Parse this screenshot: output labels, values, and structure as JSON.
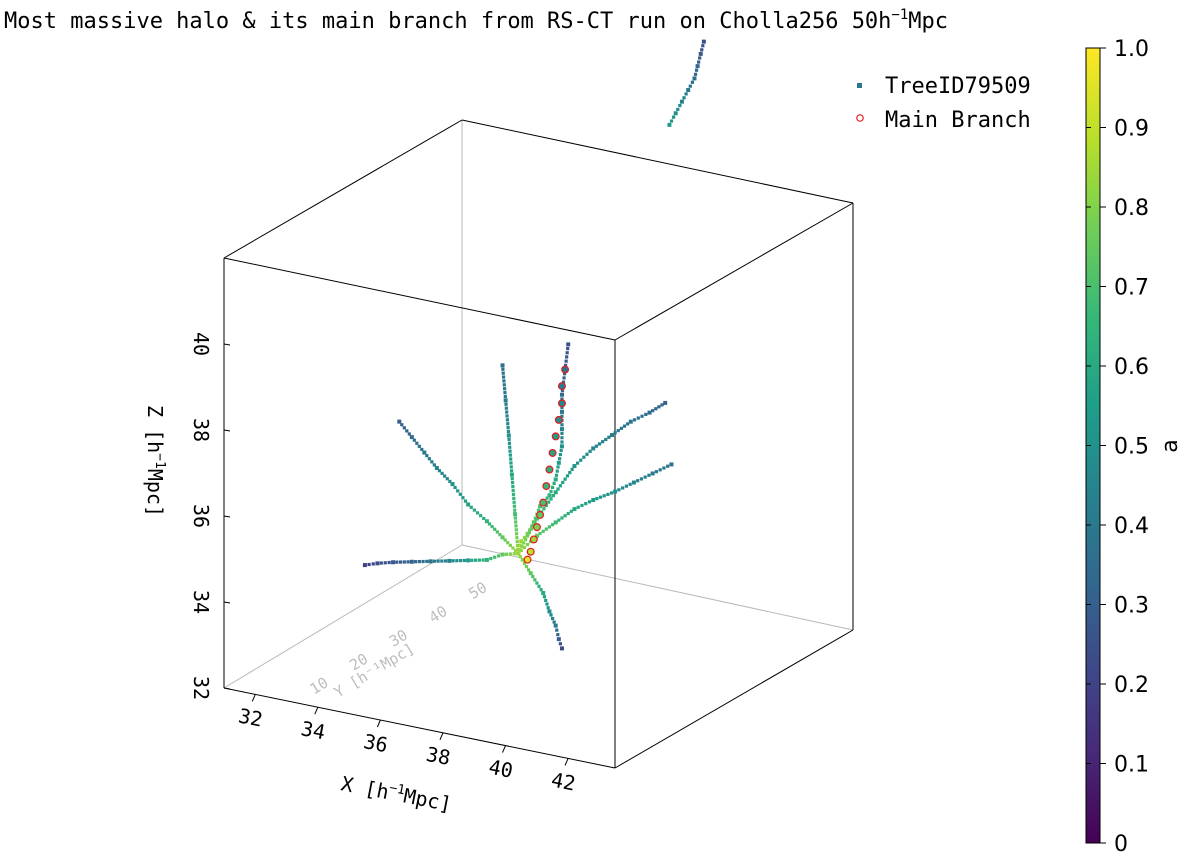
{
  "figure": {
    "title_main": "Most massive halo & its main branch from RS-CT run on Cholla256 50h",
    "title_sup": "−1",
    "title_tail": "Mpc"
  },
  "legend": {
    "entries": [
      {
        "label": "TreeID79509",
        "marker": "square",
        "color": "#2a788e"
      },
      {
        "label": "Main Branch",
        "marker": "circle-open",
        "color": "#e31a1c"
      }
    ]
  },
  "colorbar": {
    "label": "a",
    "ticks": [
      "0",
      "0.1",
      "0.2",
      "0.3",
      "0.4",
      "0.5",
      "0.6",
      "0.7",
      "0.8",
      "0.9",
      "1.0"
    ],
    "colormap": "viridis",
    "stops": [
      "#440154",
      "#482878",
      "#3e4989",
      "#31688e",
      "#26828e",
      "#1f9e89",
      "#35b779",
      "#6ece58",
      "#b5de2b",
      "#fde725"
    ]
  },
  "axes": {
    "x": {
      "label_pre": "X [h",
      "label_sup": "−1",
      "label_post": "Mpc]",
      "ticks": [
        "32",
        "34",
        "36",
        "38",
        "40",
        "42"
      ]
    },
    "y": {
      "label": "Y [h⁻¹Mpc]",
      "ticks": [
        "10",
        "20",
        "30",
        "40",
        "50"
      ]
    },
    "z": {
      "label_pre": "Z [h",
      "label_sup": "−1",
      "label_post": "Mpc]",
      "ticks": [
        "32",
        "34",
        "36",
        "38",
        "40"
      ]
    }
  },
  "chart_data": {
    "type": "scatter",
    "projection": "3d",
    "title": "Most massive halo & its main branch from RS-CT run on Cholla256 50h⁻¹Mpc",
    "xlabel": "X [h⁻¹Mpc]",
    "ylabel": "Y [h⁻¹Mpc]",
    "zlabel": "Z [h⁻¹Mpc]",
    "xlim": [
      31,
      43.5
    ],
    "ylim": [
      0,
      60
    ],
    "zlim": [
      32,
      42
    ],
    "color_variable": "a",
    "clim": [
      0,
      1
    ],
    "legend_position": "top-right",
    "grid": false,
    "series": [
      {
        "name": "TreeID79509",
        "marker": "square",
        "branches": [
          {
            "x": [
              36.6,
              36.7,
              36.9,
              37.1,
              37.3,
              37.6,
              37.8,
              37.9,
              38.0,
              38.0,
              38.0,
              38.0,
              38.1,
              38.2
            ],
            "y": [
              30,
              30,
              30,
              30,
              30,
              30,
              30,
              30,
              30,
              30,
              30,
              30,
              30,
              30
            ],
            "z": [
              34.3,
              34.6,
              34.8,
              35.1,
              35.5,
              35.8,
              36.2,
              36.6,
              37.0,
              37.4,
              37.8,
              38.2,
              38.8,
              39.4
            ],
            "a": [
              0.9,
              0.85,
              0.8,
              0.75,
              0.7,
              0.65,
              0.6,
              0.55,
              0.5,
              0.45,
              0.4,
              0.35,
              0.3,
              0.25
            ]
          },
          {
            "x": [
              36.6,
              36.1,
              35.6,
              35.0,
              34.5,
              34.0,
              33.6,
              33.2,
              32.8
            ],
            "y": [
              30,
              30,
              30,
              30,
              30,
              30,
              30,
              30,
              30
            ],
            "z": [
              34.3,
              34.6,
              34.9,
              35.2,
              35.6,
              35.9,
              36.2,
              36.5,
              36.8
            ],
            "a": [
              0.85,
              0.75,
              0.65,
              0.58,
              0.5,
              0.45,
              0.4,
              0.35,
              0.3
            ]
          },
          {
            "x": [
              36.6,
              36.1,
              35.6,
              35.0,
              34.4,
              33.8,
              33.2,
              32.6,
              32.1,
              31.7
            ],
            "y": [
              30,
              30,
              30,
              30,
              30,
              30,
              30,
              30,
              30,
              30
            ],
            "z": [
              34.3,
              34.2,
              34.0,
              33.9,
              33.8,
              33.7,
              33.6,
              33.5,
              33.4,
              33.3
            ],
            "a": [
              0.85,
              0.75,
              0.65,
              0.55,
              0.45,
              0.38,
              0.32,
              0.28,
              0.24,
              0.2
            ]
          },
          {
            "x": [
              36.6,
              37.2,
              37.8,
              38.4,
              39.0,
              39.7,
              40.3,
              40.9,
              41.5
            ],
            "y": [
              30,
              30,
              30,
              30,
              30,
              30,
              30,
              30,
              30
            ],
            "z": [
              34.3,
              34.8,
              35.2,
              35.6,
              35.9,
              36.2,
              36.5,
              36.8,
              37.1
            ],
            "a": [
              0.85,
              0.75,
              0.68,
              0.6,
              0.55,
              0.5,
              0.46,
              0.42,
              0.38
            ]
          },
          {
            "x": [
              36.6,
              37.0,
              37.4,
              37.6,
              37.8,
              37.9,
              38.0
            ],
            "y": [
              30,
              30,
              30,
              30,
              30,
              30,
              30
            ],
            "z": [
              34.3,
              33.9,
              33.5,
              33.1,
              32.8,
              32.5,
              32.3
            ],
            "a": [
              0.85,
              0.75,
              0.6,
              0.5,
              0.4,
              0.3,
              0.22
            ]
          },
          {
            "x": [
              36.6,
              37.2,
              37.8,
              38.4,
              39.0,
              39.6,
              40.2,
              40.8,
              41.3
            ],
            "y": [
              30,
              30,
              30,
              30,
              30,
              30,
              30,
              30,
              30
            ],
            "z": [
              34.3,
              35.2,
              35.9,
              36.6,
              37.1,
              37.5,
              37.9,
              38.2,
              38.5
            ],
            "a": [
              0.85,
              0.7,
              0.6,
              0.52,
              0.46,
              0.42,
              0.38,
              0.35,
              0.32
            ]
          },
          {
            "x": [
              36.6,
              36.5,
              36.4,
              36.3,
              36.2,
              36.1
            ],
            "y": [
              30,
              30,
              30,
              30,
              30,
              30
            ],
            "z": [
              34.3,
              35.2,
              36.1,
              37.0,
              37.8,
              38.6
            ],
            "a": [
              0.85,
              0.7,
              0.6,
              0.5,
              0.42,
              0.36
            ]
          },
          {
            "x": [
              38.9,
              39.1,
              39.3,
              39.5,
              39.7,
              39.8,
              39.9,
              40.0
            ],
            "y": [
              50,
              50,
              50,
              50,
              50,
              50,
              50,
              50
            ],
            "z": [
              43.5,
              43.8,
              44.1,
              44.4,
              44.7,
              45.0,
              45.3,
              45.6
            ],
            "a": [
              0.55,
              0.5,
              0.45,
              0.4,
              0.36,
              0.32,
              0.28,
              0.25
            ]
          }
        ]
      },
      {
        "name": "Main Branch",
        "marker": "circle-open",
        "x": [
          36.9,
          37.0,
          37.1,
          37.2,
          37.3,
          37.4,
          37.5,
          37.6,
          37.7,
          37.8,
          37.9,
          38.0,
          38.0,
          38.1
        ],
        "y": [
          30,
          30,
          30,
          30,
          30,
          30,
          30,
          30,
          30,
          30,
          30,
          30,
          30,
          30
        ],
        "z": [
          34.2,
          34.4,
          34.7,
          35.0,
          35.3,
          35.6,
          36.0,
          36.4,
          36.8,
          37.2,
          37.6,
          38.0,
          38.4,
          38.8
        ],
        "a": [
          0.95,
          0.9,
          0.85,
          0.8,
          0.75,
          0.7,
          0.66,
          0.62,
          0.58,
          0.55,
          0.5,
          0.46,
          0.42,
          0.38
        ]
      }
    ]
  }
}
